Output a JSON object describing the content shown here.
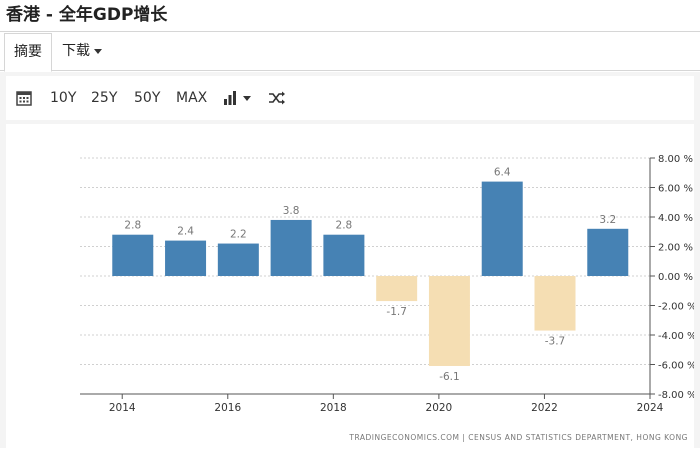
{
  "header": {
    "title": "香港 - 全年GDP增长"
  },
  "tabs": {
    "summary": "摘要",
    "download": "下载"
  },
  "toolbar": {
    "calendar_icon": "calendar-icon",
    "range_10y": "10Y",
    "range_25y": "25Y",
    "range_50y": "50Y",
    "range_max": "MAX",
    "chart_type_icon": "bar-chart-icon",
    "compare_icon": "shuffle-icon"
  },
  "colors": {
    "positive": "#4682b4",
    "negative": "#f5deb3",
    "label": "#777777"
  },
  "chart_data": {
    "type": "bar",
    "x": [
      2014,
      2015,
      2016,
      2017,
      2018,
      2019,
      2020,
      2021,
      2022,
      2023
    ],
    "values": [
      2.8,
      2.4,
      2.2,
      3.8,
      2.8,
      -1.7,
      -6.1,
      6.4,
      -3.7,
      3.2
    ],
    "x_ticks": [
      "2014",
      "2016",
      "2018",
      "2020",
      "2022",
      "2024"
    ],
    "y_ticks": [
      "8.00 %",
      "6.00 %",
      "4.00 %",
      "2.00 %",
      "0.00 %",
      "-2.00 %",
      "-4.00 %",
      "-6.00 %",
      "-8.00 %"
    ],
    "ylim": [
      -8,
      8
    ],
    "xlim": [
      2013.2,
      2024
    ],
    "y_axis_side": "right",
    "grid": "horizontal dotted",
    "source": "TRADINGECONOMICS.COM | CENSUS AND STATISTICS DEPARTMENT, HONG KONG"
  }
}
